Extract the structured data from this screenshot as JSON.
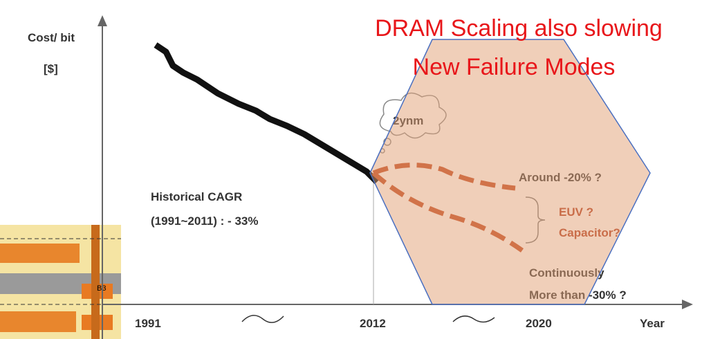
{
  "header": {
    "title_line1": "DRAM Scaling also slowing",
    "title_line2": "New Failure Modes"
  },
  "axes": {
    "y_label": "Cost/ bit",
    "y_unit": "[$]",
    "x_label": "Year",
    "x_labels": [
      "1991",
      "2012",
      "2020"
    ]
  },
  "annotations": {
    "node": "2ynm",
    "historical_line1": "Historical CAGR",
    "historical_line2": "(1991~2011) : - 33%",
    "upper": "Around -20% ?",
    "cause_line1": "EUV ?",
    "cause_line2": "Capacitor?",
    "lower_line1": "Continuously",
    "lower_line2": "More than -30% ?"
  },
  "inset": {
    "label": "B3"
  }
}
